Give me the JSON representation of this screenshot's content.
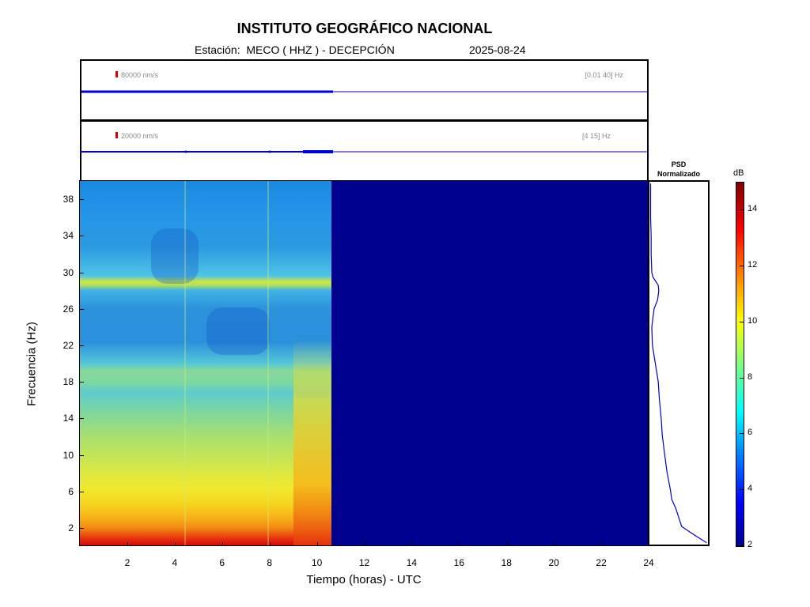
{
  "header": {
    "title": "INSTITUTO GEOGRÁFICO NACIONAL",
    "station_line": "Estación:  MECO ( HHZ ) - DECEPCIÓN",
    "date": "2025-08-24"
  },
  "trace_panels": [
    {
      "scale_label": "80000 nm/s",
      "band_label": "[0.01 40] Hz",
      "scale_color": "#dd0000",
      "trace_color": "#0000cc"
    },
    {
      "scale_label": "20000 nm/s",
      "band_label": "[4 15] Hz",
      "scale_color": "#dd0000",
      "trace_color": "#0000cc"
    }
  ],
  "psd_panel": {
    "title_line1": "PSD",
    "title_line2": "Normalizado"
  },
  "colorbar": {
    "unit": "dB",
    "ticks": [
      "2",
      "4",
      "6",
      "8",
      "10",
      "12",
      "14"
    ],
    "range": [
      2,
      15
    ],
    "colormap": "jet"
  },
  "axes": {
    "xlabel": "Tiempo (horas) - UTC",
    "ylabel": "Frecuencia  (Hz)",
    "x_ticks": [
      "2",
      "4",
      "6",
      "8",
      "10",
      "12",
      "14",
      "16",
      "18",
      "20",
      "22",
      "24"
    ],
    "y_ticks": [
      "2",
      "6",
      "10",
      "14",
      "18",
      "22",
      "26",
      "30",
      "34",
      "38"
    ]
  },
  "chart_data": [
    {
      "type": "heatmap",
      "title": "",
      "xlabel": "Tiempo (horas) - UTC",
      "ylabel": "Frecuencia  (Hz)",
      "xlim": [
        0,
        24
      ],
      "ylim": [
        0,
        40
      ],
      "data_end_hour": 10.6,
      "no_data_color": "#00008f",
      "colorbar_unit": "dB",
      "colorbar_range": [
        2,
        15
      ],
      "notes_levels_db_by_frequency": {
        "frequency_hz": [
          0.5,
          2,
          4,
          6,
          8,
          10,
          12,
          14,
          16,
          18,
          20,
          22,
          24,
          26,
          28,
          30,
          32,
          34,
          36,
          38,
          40
        ],
        "level_db": [
          14,
          12.5,
          11,
          10.5,
          9.5,
          9.2,
          8.6,
          8.3,
          8,
          7.6,
          6.5,
          5.6,
          5.8,
          6.3,
          8,
          6.1,
          6.0,
          5.8,
          5.9,
          5.9,
          5.8
        ]
      }
    },
    {
      "type": "line",
      "title": "PSD Normalizado",
      "xlabel": "",
      "ylabel": "Frecuencia  (Hz)",
      "ylim": [
        0,
        40
      ],
      "xlim": [
        0,
        1
      ],
      "series": [
        {
          "frequency_hz": [
            0.2,
            1,
            2,
            3,
            4,
            5,
            6,
            8,
            10,
            12,
            14,
            16,
            18,
            20,
            22,
            24,
            26,
            27,
            28,
            28.6,
            29.5,
            30,
            32,
            34,
            36,
            38,
            39.8
          ],
          "psd_norm": [
            0.98,
            0.78,
            0.55,
            0.5,
            0.45,
            0.38,
            0.36,
            0.3,
            0.26,
            0.22,
            0.2,
            0.17,
            0.15,
            0.1,
            0.05,
            0.04,
            0.08,
            0.14,
            0.16,
            0.15,
            0.06,
            0.04,
            0.03,
            0.03,
            0.02,
            0.02,
            0.02
          ]
        }
      ]
    }
  ]
}
